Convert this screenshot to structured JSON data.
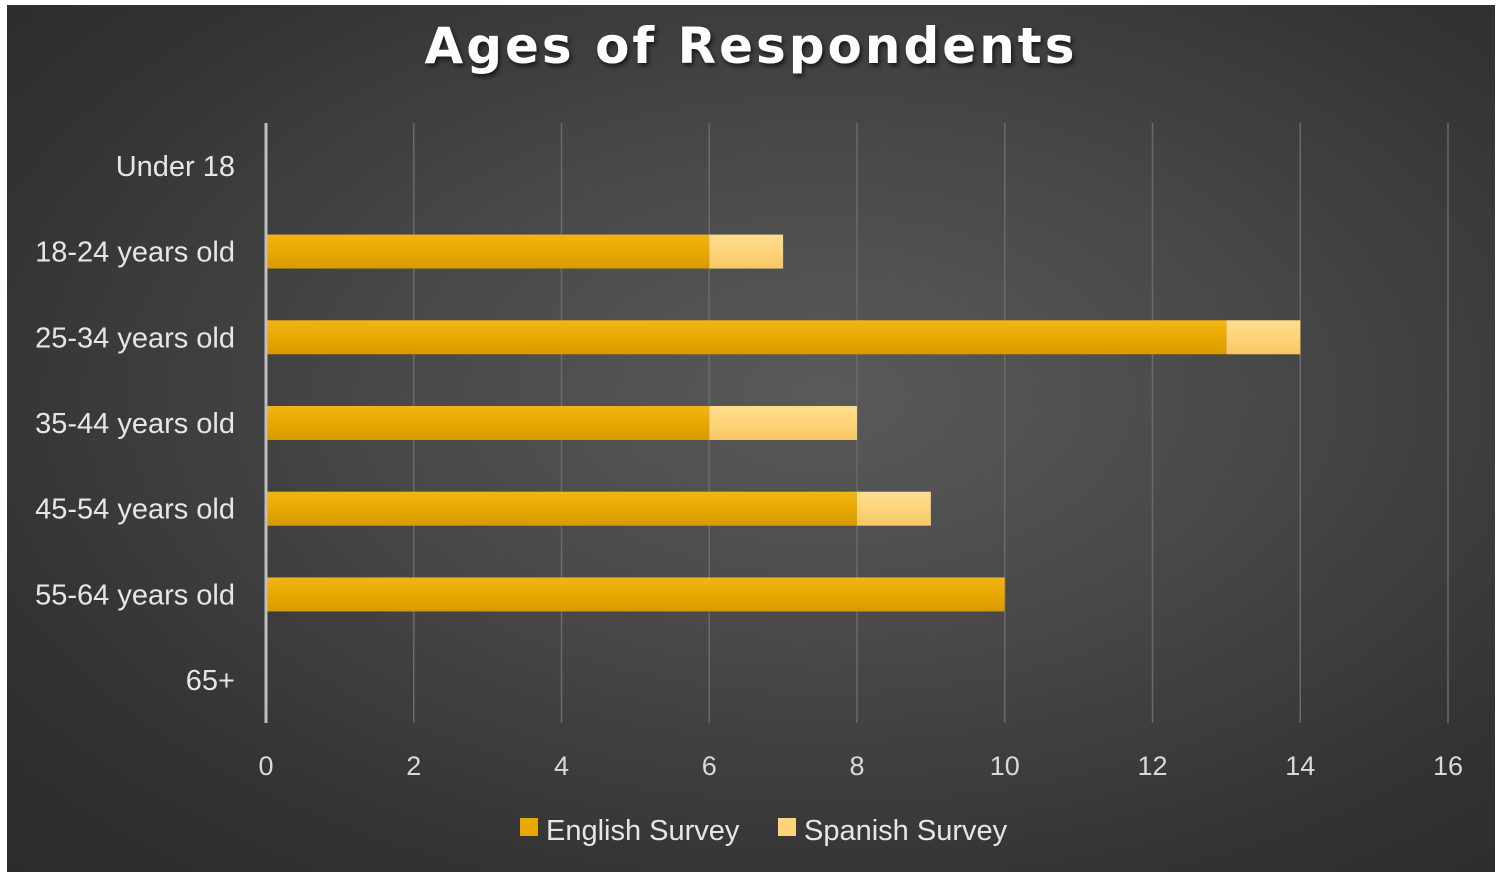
{
  "chart_data": {
    "type": "bar",
    "orientation": "horizontal",
    "stacked": true,
    "title": "Ages of Respondents",
    "categories": [
      "Under 18",
      "18-24 years old",
      "25-34 years old",
      "35-44 years old",
      "45-54 years old",
      "55-64 years old",
      "65+"
    ],
    "series": [
      {
        "name": "English Survey",
        "values": [
          0,
          6,
          13,
          6,
          8,
          10,
          0
        ],
        "color": "#E8A800"
      },
      {
        "name": "Spanish Survey",
        "values": [
          0,
          1,
          1,
          2,
          1,
          0,
          0
        ],
        "color": "#FFD47A"
      }
    ],
    "xlim": [
      0,
      16
    ],
    "xticks": [
      "0",
      "2",
      "4",
      "6",
      "8",
      "10",
      "12",
      "14",
      "16"
    ],
    "grid": true,
    "legend_position": "bottom",
    "background": "#3c3c3c"
  }
}
